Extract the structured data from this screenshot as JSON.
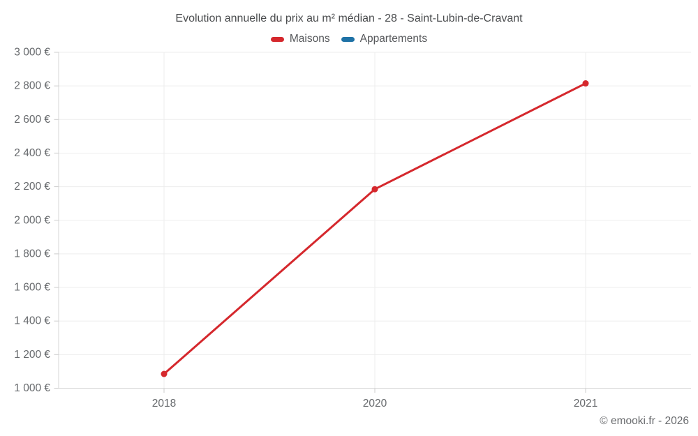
{
  "title": "Evolution annuelle du prix au m² médian - 28 - Saint-Lubin-de-Cravant",
  "legend": [
    {
      "label": "Maisons",
      "color": "#d5282d"
    },
    {
      "label": "Appartements",
      "color": "#1f72a6"
    }
  ],
  "copyright": "© emooki.fr - 2026",
  "chart_data": {
    "type": "line",
    "title": "Evolution annuelle du prix au m² médian - 28 - Saint-Lubin-de-Cravant",
    "categories": [
      "2018",
      "2020",
      "2021"
    ],
    "series": [
      {
        "name": "Maisons",
        "color": "#d5282d",
        "values": [
          1085,
          2185,
          2815
        ]
      },
      {
        "name": "Appartements",
        "color": "#1f72a6",
        "values": []
      }
    ],
    "xlabel": "",
    "ylabel": "",
    "ylim": [
      1000,
      3000
    ],
    "ytick_step": 200,
    "ytick_labels": [
      "1 000 €",
      "1 200 €",
      "1 400 €",
      "1 600 €",
      "1 800 €",
      "2 000 €",
      "2 200 €",
      "2 400 €",
      "2 600 €",
      "2 800 €",
      "3 000 €"
    ],
    "grid": true,
    "legend_position": "top",
    "colors": {
      "gridline": "#ededed",
      "axis_line": "#d4d4d4",
      "tick_mark": "#cccccc",
      "tick_label": "#66696c"
    }
  }
}
